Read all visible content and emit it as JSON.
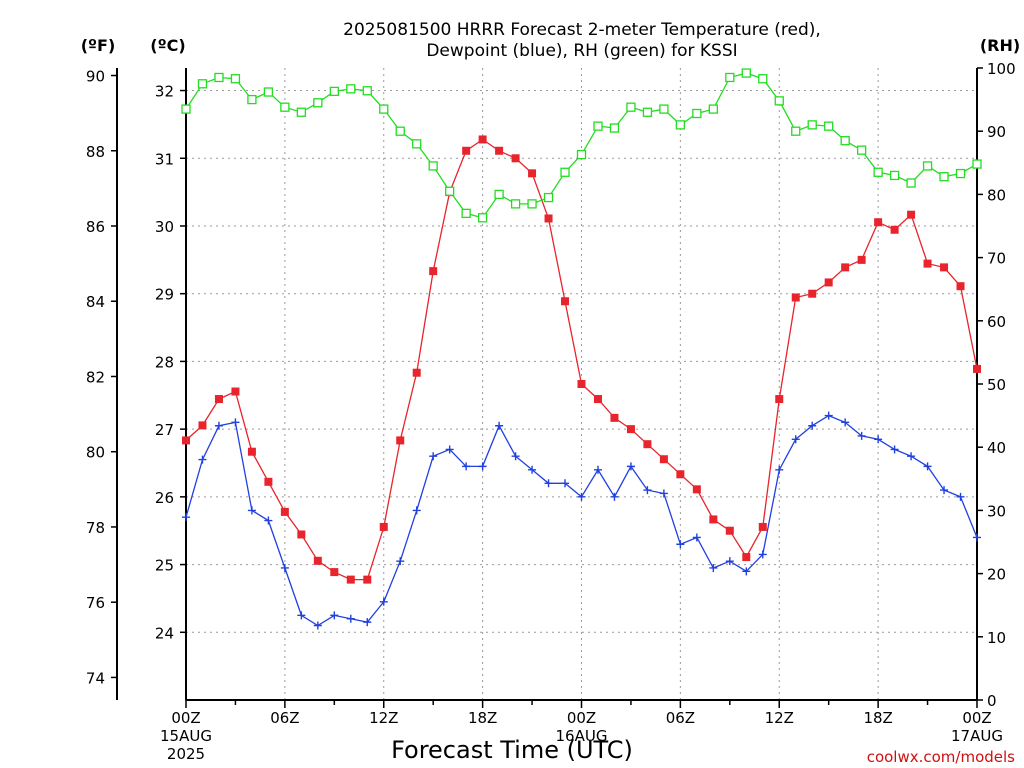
{
  "chart_data": {
    "type": "line",
    "title_line1": "2025081500 HRRR Forecast 2-meter Temperature (red),",
    "title_line2": "Dewpoint (blue), RH (green) for KSSI",
    "xlabel": "Forecast Time (UTC)",
    "credit": "coolwx.com/models",
    "axes": {
      "f_unit": "(ºF)",
      "c_unit": "(ºC)",
      "rh_unit": "(RH)",
      "f_range": [
        73.4,
        90.2
      ],
      "f_ticks": [
        "74",
        "76",
        "78",
        "80",
        "82",
        "84",
        "86",
        "88",
        "90"
      ],
      "c_range": [
        23.0,
        32.333
      ],
      "c_ticks": [
        "24",
        "25",
        "26",
        "27",
        "28",
        "29",
        "30",
        "31",
        "32"
      ],
      "rh_range": [
        0,
        100
      ],
      "rh_ticks": [
        "0",
        "10",
        "20",
        "30",
        "40",
        "50",
        "60",
        "70",
        "80",
        "90",
        "100"
      ],
      "x_range": [
        0,
        48
      ],
      "x_ticks": [
        {
          "hour": 0,
          "label": "00Z",
          "sub1": "15AUG",
          "sub2": "2025"
        },
        {
          "hour": 6,
          "label": "06Z",
          "sub1": "",
          "sub2": ""
        },
        {
          "hour": 12,
          "label": "12Z",
          "sub1": "",
          "sub2": ""
        },
        {
          "hour": 18,
          "label": "18Z",
          "sub1": "",
          "sub2": ""
        },
        {
          "hour": 24,
          "label": "00Z",
          "sub1": "16AUG",
          "sub2": ""
        },
        {
          "hour": 30,
          "label": "06Z",
          "sub1": "",
          "sub2": ""
        },
        {
          "hour": 36,
          "label": "12Z",
          "sub1": "",
          "sub2": ""
        },
        {
          "hour": 42,
          "label": "18Z",
          "sub1": "",
          "sub2": ""
        },
        {
          "hour": 48,
          "label": "00Z",
          "sub1": "17AUG",
          "sub2": ""
        }
      ],
      "grid": true
    },
    "series": [
      {
        "name": "2-meter Temperature",
        "unit": "ºF",
        "color": "#e8242c",
        "marker": "filled-square",
        "x": [
          0,
          1,
          2,
          3,
          4,
          5,
          6,
          7,
          8,
          9,
          10,
          11,
          12,
          13,
          14,
          15,
          16,
          17,
          18,
          19,
          20,
          21,
          22,
          23,
          24,
          25,
          26,
          27,
          28,
          29,
          30,
          31,
          32,
          33,
          34,
          35,
          36,
          37,
          38,
          39,
          40,
          41,
          42,
          43,
          44,
          45,
          46,
          47,
          48
        ],
        "values": [
          80.3,
          80.7,
          81.4,
          81.6,
          80.0,
          79.2,
          78.4,
          77.8,
          77.1,
          76.8,
          76.6,
          76.6,
          78.0,
          80.3,
          82.1,
          84.8,
          86.9,
          88.0,
          88.3,
          88.0,
          87.8,
          87.4,
          86.2,
          84.0,
          81.8,
          81.4,
          80.9,
          80.6,
          80.2,
          79.8,
          79.4,
          79.0,
          78.2,
          77.9,
          77.2,
          78.0,
          81.4,
          84.1,
          84.2,
          84.5,
          84.9,
          85.1,
          86.1,
          85.9,
          86.3,
          85.0,
          84.9,
          84.4,
          82.2
        ]
      },
      {
        "name": "Dewpoint",
        "unit": "ºC",
        "color": "#2040e0",
        "marker": "plus",
        "x": [
          0,
          1,
          2,
          3,
          4,
          5,
          6,
          7,
          8,
          9,
          10,
          11,
          12,
          13,
          14,
          15,
          16,
          17,
          18,
          19,
          20,
          21,
          22,
          23,
          24,
          25,
          26,
          27,
          28,
          29,
          30,
          31,
          32,
          33,
          34,
          35,
          36,
          37,
          38,
          39,
          40,
          41,
          42,
          43,
          44,
          45,
          46,
          47,
          48
        ],
        "values": [
          25.7,
          26.55,
          27.05,
          27.1,
          25.8,
          25.65,
          24.95,
          24.25,
          24.1,
          24.25,
          24.2,
          24.15,
          24.45,
          25.05,
          25.8,
          26.6,
          26.7,
          26.45,
          26.45,
          27.05,
          26.6,
          26.4,
          26.2,
          26.2,
          26.0,
          26.4,
          26.0,
          26.45,
          26.1,
          26.05,
          25.3,
          25.4,
          24.95,
          25.05,
          24.9,
          25.15,
          26.4,
          26.85,
          27.05,
          27.2,
          27.1,
          26.9,
          26.85,
          26.7,
          26.6,
          26.45,
          26.1,
          26.0,
          25.4
        ]
      },
      {
        "name": "RH",
        "unit": "%",
        "color": "#22dd22",
        "marker": "open-square",
        "x": [
          0,
          1,
          2,
          3,
          4,
          5,
          6,
          7,
          8,
          9,
          10,
          11,
          12,
          13,
          14,
          15,
          16,
          17,
          18,
          19,
          20,
          21,
          22,
          23,
          24,
          25,
          26,
          27,
          28,
          29,
          30,
          31,
          32,
          33,
          34,
          35,
          36,
          37,
          38,
          39,
          40,
          41,
          42,
          43,
          44,
          45,
          46,
          47,
          48
        ],
        "values": [
          93.5,
          97.5,
          98.5,
          98.3,
          95.0,
          96.2,
          93.8,
          93.0,
          94.5,
          96.3,
          96.7,
          96.4,
          93.5,
          90.0,
          88.0,
          84.5,
          80.5,
          77.0,
          76.3,
          80.0,
          78.5,
          78.5,
          79.5,
          83.5,
          86.3,
          90.8,
          90.5,
          93.8,
          93.0,
          93.5,
          91.0,
          92.8,
          93.5,
          98.5,
          99.2,
          98.3,
          94.8,
          90.0,
          91.0,
          90.8,
          88.5,
          87.0,
          83.5,
          83.0,
          81.8,
          84.5,
          82.8,
          83.3,
          84.8
        ]
      }
    ]
  }
}
